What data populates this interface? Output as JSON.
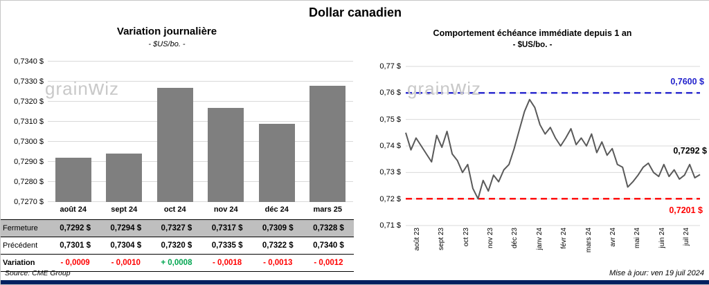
{
  "title": "Dollar canadien",
  "watermark": "grainwiz",
  "chart_data": [
    {
      "type": "bar",
      "title": "Variation journalière",
      "subtitle": "- $US/bo. -",
      "categories": [
        "août 24",
        "sept 24",
        "oct 24",
        "nov 24",
        "déc 24",
        "mars 25"
      ],
      "values": [
        0.7292,
        0.7294,
        0.7327,
        0.7317,
        0.7309,
        0.7328
      ],
      "ylim": [
        0.727,
        0.734
      ],
      "ytick_labels": [
        "0,7340 $",
        "0,7330 $",
        "0,7320 $",
        "0,7310 $",
        "0,7300 $",
        "0,7290 $",
        "0,7280 $",
        "0,7270 $"
      ],
      "bar_color": "#7F7F7F",
      "grid": true,
      "legend_position": "none"
    },
    {
      "type": "line",
      "title": "Comportement échéance immédiate depuis 1 an",
      "subtitle": "- $US/bo. -",
      "x_tick_labels": [
        "août 23",
        "sept 23",
        "oct 23",
        "nov 23",
        "déc 23",
        "janv 24",
        "févr 24",
        "mars 24",
        "avr 24",
        "mai 24",
        "juin 24",
        "juil 24"
      ],
      "ytick_labels": [
        "0,77 $",
        "0,76 $",
        "0,75 $",
        "0,74 $",
        "0,73 $",
        "0,72 $",
        "0,71 $"
      ],
      "ylim": [
        0.71,
        0.77
      ],
      "values": [
        0.745,
        0.7385,
        0.743,
        0.74,
        0.737,
        0.734,
        0.744,
        0.7395,
        0.7455,
        0.737,
        0.7345,
        0.73,
        0.733,
        0.724,
        0.7201,
        0.727,
        0.723,
        0.729,
        0.7265,
        0.731,
        0.733,
        0.739,
        0.746,
        0.753,
        0.7575,
        0.7545,
        0.748,
        0.7445,
        0.747,
        0.743,
        0.74,
        0.743,
        0.7465,
        0.7405,
        0.743,
        0.74,
        0.7445,
        0.7375,
        0.7415,
        0.7365,
        0.739,
        0.733,
        0.732,
        0.7245,
        0.7265,
        0.729,
        0.732,
        0.7335,
        0.73,
        0.7285,
        0.733,
        0.7285,
        0.731,
        0.7275,
        0.729,
        0.733,
        0.728,
        0.7292
      ],
      "line_color": "#595959",
      "reference_lines": [
        {
          "value": 0.76,
          "label": "0,7600 $",
          "color": "#2222CC"
        },
        {
          "value": 0.7201,
          "label": "0,7201 $",
          "color": "#FF0000"
        }
      ],
      "last_value_label": "0,7292 $",
      "grid": true,
      "legend_position": "none"
    }
  ],
  "table": {
    "rows": [
      {
        "name": "fermeture",
        "label": "Fermeture",
        "values": [
          "0,7292 $",
          "0,7294 $",
          "0,7327 $",
          "0,7317 $",
          "0,7309 $",
          "0,7328 $"
        ]
      },
      {
        "name": "precedent",
        "label": "Précédent",
        "values": [
          "0,7301 $",
          "0,7304 $",
          "0,7320 $",
          "0,7335 $",
          "0,7322 $",
          "0,7340 $"
        ]
      },
      {
        "name": "variation",
        "label": "Variation",
        "values": [
          "- 0,0009",
          "- 0,0010",
          "+ 0,0008",
          "- 0,0018",
          "- 0,0013",
          "- 0,0012"
        ]
      }
    ]
  },
  "colors": {
    "bar": "#7F7F7F",
    "negative": "#FF0000",
    "positive": "#00A550",
    "high_line": "#2222CC",
    "low_line": "#FF0000",
    "bottom_bar": "#002060",
    "gridline": "#d9d9d9"
  },
  "footer": {
    "source": "Source: CME Group",
    "updated": "Mise à jour: ven 19 juil 2024"
  }
}
